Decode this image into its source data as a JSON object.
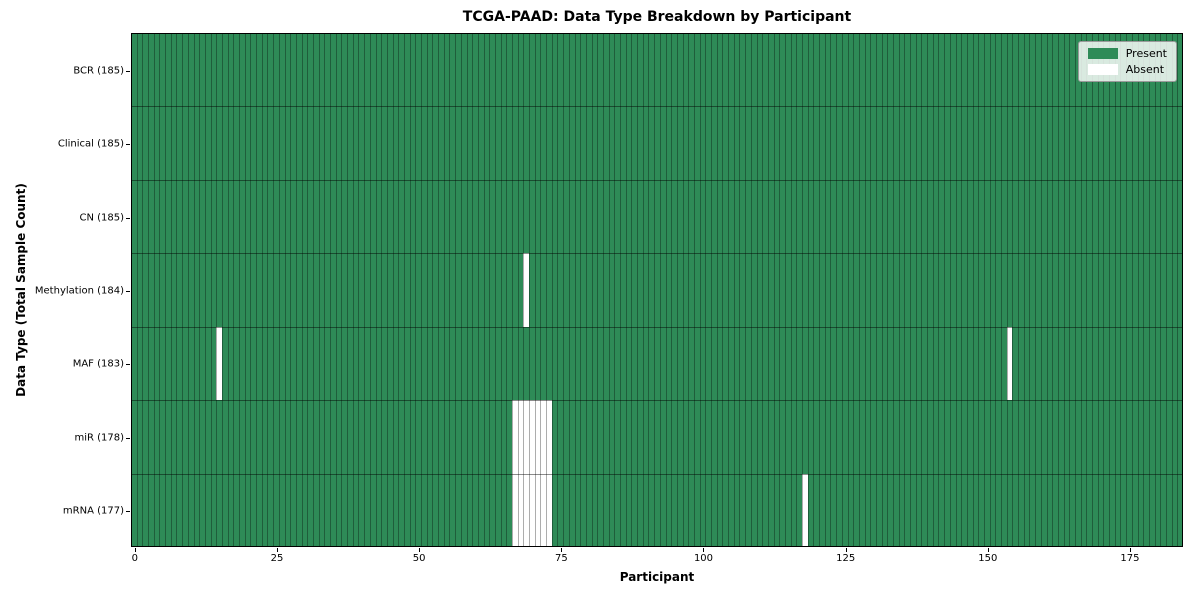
{
  "title": "TCGA-PAAD: Data Type Breakdown by Participant",
  "axes": {
    "xlabel": "Participant",
    "ylabel": "Data Type (Total Sample Count)"
  },
  "chart_data": {
    "type": "heatmap",
    "title": "TCGA-PAAD: Data Type Breakdown by Participant",
    "xlabel": "Participant",
    "ylabel": "Data Type (Total Sample Count)",
    "n_participants": 185,
    "xlim": [
      -0.5,
      184.5
    ],
    "x_ticks": [
      0,
      25,
      50,
      75,
      100,
      125,
      150,
      175
    ],
    "grid": false,
    "legend_position": "upper right",
    "colors": {
      "present": "#2e8b57",
      "absent": "#ffffff"
    },
    "legend": [
      {
        "label": "Present"
      },
      {
        "label": "Absent"
      }
    ],
    "rows": [
      {
        "data_type": "BCR",
        "label": "BCR (185)",
        "total_samples": 185,
        "absent_participants": []
      },
      {
        "data_type": "Clinical",
        "label": "Clinical (185)",
        "total_samples": 185,
        "absent_participants": []
      },
      {
        "data_type": "CN",
        "label": "CN (185)",
        "total_samples": 185,
        "absent_participants": []
      },
      {
        "data_type": "Methylation",
        "label": "Methylation (184)",
        "total_samples": 184,
        "absent_participants": [
          69
        ]
      },
      {
        "data_type": "MAF",
        "label": "MAF (183)",
        "total_samples": 183,
        "absent_participants": [
          15,
          154
        ]
      },
      {
        "data_type": "miR",
        "label": "miR (178)",
        "total_samples": 178,
        "absent_participants": [
          67,
          68,
          69,
          70,
          71,
          72,
          73
        ]
      },
      {
        "data_type": "mRNA",
        "label": "mRNA (177)",
        "total_samples": 177,
        "absent_participants": [
          67,
          68,
          69,
          70,
          71,
          72,
          73,
          118
        ]
      }
    ]
  }
}
